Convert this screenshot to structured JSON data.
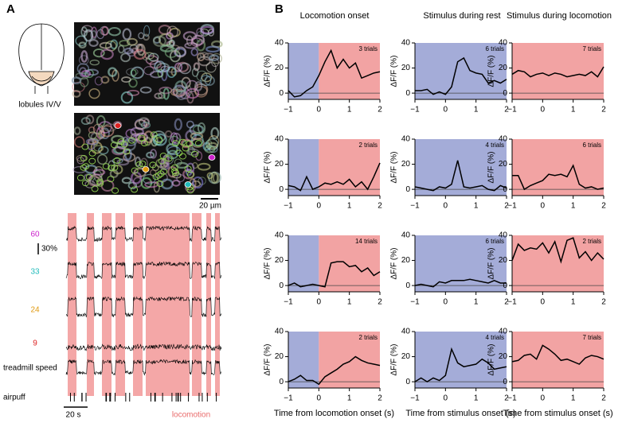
{
  "panel_labels": [
    "A",
    "B"
  ],
  "panel_a": {
    "region_label": "lobules IV/V",
    "scale_bar_image": "20 µm",
    "scale_bar_trace": "30%",
    "scale_bar_time": "20 s",
    "locomotion_label": "locomotion",
    "traces": [
      {
        "label": "60",
        "color": "#cc22cc"
      },
      {
        "label": "33",
        "color": "#22bbbb"
      },
      {
        "label": "24",
        "color": "#e09a10"
      },
      {
        "label": "9",
        "color": "#dd2222"
      },
      {
        "label": "treadmill speed",
        "color": "#000000"
      },
      {
        "label": "airpuff",
        "color": "#000000"
      }
    ]
  },
  "column_titles": [
    "Locomotion onset",
    "Stimulus during rest",
    "Stimulus during locomotion"
  ],
  "chart_data": [
    {
      "type": "line",
      "ylabel": "ΔF/F (%)",
      "annotation": "3 trials",
      "color": "#000000",
      "x": [
        -1,
        -0.8,
        -0.6,
        -0.4,
        -0.2,
        0,
        0.2,
        0.4,
        0.6,
        0.8,
        1,
        1.2,
        1.4,
        1.6,
        1.8,
        2
      ],
      "values": [
        2,
        -3,
        -2,
        2,
        5,
        14,
        25,
        34,
        20,
        27,
        20,
        24,
        12,
        14,
        16,
        17
      ],
      "xlim": [
        -1,
        2
      ],
      "xticks": [
        {
          "value": -1,
          "label": "−1"
        },
        0,
        1,
        2
      ],
      "ylim": [
        -5,
        40
      ],
      "yticks": [
        0,
        20,
        40
      ],
      "shading": [
        {
          "from": -1,
          "to": 0,
          "color": "#a4acd8"
        },
        {
          "from": 0,
          "to": 2,
          "color": "#f2a3a3"
        }
      ]
    },
    {
      "type": "line",
      "ylabel": "ΔF/F (%)",
      "annotation": "6 trials",
      "color": "#000000",
      "x": [
        -1,
        -0.8,
        -0.6,
        -0.4,
        -0.2,
        0,
        0.2,
        0.4,
        0.6,
        0.8,
        1,
        1.2,
        1.4,
        1.6,
        1.8,
        2
      ],
      "values": [
        2,
        2,
        3,
        -1,
        1,
        -1,
        5,
        25,
        28,
        18,
        16,
        15,
        8,
        10,
        8,
        11
      ],
      "xlim": [
        -1,
        2
      ],
      "xticks": [
        {
          "value": -1,
          "label": "−1"
        },
        0,
        1,
        2
      ],
      "ylim": [
        -5,
        40
      ],
      "yticks": [
        0,
        20,
        40
      ],
      "shading": [
        {
          "from": -1,
          "to": 2,
          "color": "#a4acd8"
        }
      ]
    },
    {
      "type": "line",
      "ylabel": "ΔF/F (%)",
      "annotation": "7 trials",
      "color": "#000000",
      "x": [
        -1,
        -0.8,
        -0.6,
        -0.4,
        -0.2,
        0,
        0.2,
        0.4,
        0.6,
        0.8,
        1,
        1.2,
        1.4,
        1.6,
        1.8,
        2
      ],
      "values": [
        15,
        18,
        17,
        13,
        15,
        16,
        14,
        16,
        15,
        13,
        14,
        15,
        14,
        17,
        13,
        21
      ],
      "xlim": [
        -1,
        2
      ],
      "xticks": [
        {
          "value": -1,
          "label": "−1"
        },
        0,
        1,
        2
      ],
      "ylim": [
        -5,
        40
      ],
      "yticks": [
        0,
        20,
        40
      ],
      "shading": [
        {
          "from": -1,
          "to": 2,
          "color": "#f2a3a3"
        }
      ]
    },
    {
      "type": "line",
      "ylabel": "ΔF/F (%)",
      "annotation": "2 trials",
      "color": "#000000",
      "x": [
        -1,
        -0.8,
        -0.6,
        -0.4,
        -0.2,
        0,
        0.2,
        0.4,
        0.6,
        0.8,
        1,
        1.2,
        1.4,
        1.6,
        1.8,
        2
      ],
      "values": [
        3,
        2,
        -1,
        10,
        0,
        2,
        5,
        4,
        6,
        4,
        8,
        2,
        6,
        0,
        10,
        21
      ],
      "xlim": [
        -1,
        2
      ],
      "xticks": [
        {
          "value": -1,
          "label": "−1"
        },
        0,
        1,
        2
      ],
      "ylim": [
        -5,
        40
      ],
      "yticks": [
        0,
        20,
        40
      ],
      "shading": [
        {
          "from": -1,
          "to": 0,
          "color": "#a4acd8"
        },
        {
          "from": 0,
          "to": 2,
          "color": "#f2a3a3"
        }
      ]
    },
    {
      "type": "line",
      "ylabel": "ΔF/F (%)",
      "annotation": "4 trials",
      "color": "#000000",
      "x": [
        -1,
        -0.8,
        -0.6,
        -0.4,
        -0.2,
        0,
        0.2,
        0.4,
        0.6,
        0.8,
        1,
        1.2,
        1.4,
        1.6,
        1.8,
        2
      ],
      "values": [
        2,
        1,
        0,
        -1,
        2,
        1,
        4,
        23,
        2,
        1,
        2,
        3,
        0,
        -1,
        3,
        1
      ],
      "xlim": [
        -1,
        2
      ],
      "xticks": [
        {
          "value": -1,
          "label": "−1"
        },
        0,
        1,
        2
      ],
      "ylim": [
        -5,
        40
      ],
      "yticks": [
        0,
        20,
        40
      ],
      "shading": [
        {
          "from": -1,
          "to": 2,
          "color": "#a4acd8"
        }
      ]
    },
    {
      "type": "line",
      "ylabel": "ΔF/F (%)",
      "annotation": "6 trials",
      "color": "#000000",
      "x": [
        -1,
        -0.8,
        -0.6,
        -0.4,
        -0.2,
        0,
        0.2,
        0.4,
        0.6,
        0.8,
        1,
        1.2,
        1.4,
        1.6,
        1.8,
        2
      ],
      "values": [
        11,
        11,
        0,
        3,
        5,
        7,
        12,
        11,
        12,
        10,
        19,
        4,
        1,
        2,
        0,
        1
      ],
      "xlim": [
        -1,
        2
      ],
      "xticks": [
        {
          "value": -1,
          "label": "−1"
        },
        0,
        1,
        2
      ],
      "ylim": [
        -5,
        40
      ],
      "yticks": [
        0,
        20,
        40
      ],
      "shading": [
        {
          "from": -1,
          "to": 2,
          "color": "#f2a3a3"
        }
      ]
    },
    {
      "type": "line",
      "ylabel": "ΔF/F (%)",
      "annotation": "14 trials",
      "color": "#000000",
      "x": [
        -1,
        -0.8,
        -0.6,
        -0.4,
        -0.2,
        0,
        0.2,
        0.4,
        0.6,
        0.8,
        1,
        1.2,
        1.4,
        1.6,
        1.8,
        2
      ],
      "values": [
        0,
        2,
        -1,
        0,
        1,
        0,
        -1,
        18,
        19,
        19,
        15,
        16,
        11,
        14,
        8,
        11
      ],
      "xlim": [
        -1,
        2
      ],
      "xticks": [
        {
          "value": -1,
          "label": "−1"
        },
        0,
        1,
        2
      ],
      "ylim": [
        -5,
        40
      ],
      "yticks": [
        0,
        20,
        40
      ],
      "shading": [
        {
          "from": -1,
          "to": 0,
          "color": "#a4acd8"
        },
        {
          "from": 0,
          "to": 2,
          "color": "#f2a3a3"
        }
      ]
    },
    {
      "type": "line",
      "ylabel": "ΔF/F (%)",
      "annotation": "6 trials",
      "color": "#000000",
      "x": [
        -1,
        -0.8,
        -0.6,
        -0.4,
        -0.2,
        0,
        0.2,
        0.4,
        0.6,
        0.8,
        1,
        1.2,
        1.4,
        1.6,
        1.8,
        2
      ],
      "values": [
        0,
        1,
        0,
        -1,
        3,
        2,
        4,
        4,
        4,
        5,
        4,
        3,
        2,
        4,
        2,
        2
      ],
      "xlim": [
        -1,
        2
      ],
      "xticks": [
        {
          "value": -1,
          "label": "−1"
        },
        0,
        1,
        2
      ],
      "ylim": [
        -5,
        40
      ],
      "yticks": [
        0,
        20,
        40
      ],
      "shading": [
        {
          "from": -1,
          "to": 2,
          "color": "#a4acd8"
        }
      ]
    },
    {
      "type": "line",
      "ylabel": "ΔF/F (%)",
      "annotation": "2 trials",
      "color": "#000000",
      "x": [
        -1,
        -0.8,
        -0.6,
        -0.4,
        -0.2,
        0,
        0.2,
        0.4,
        0.6,
        0.8,
        1,
        1.2,
        1.4,
        1.6,
        1.8,
        2
      ],
      "values": [
        20,
        33,
        28,
        30,
        29,
        34,
        26,
        35,
        19,
        36,
        38,
        22,
        27,
        20,
        26,
        21
      ],
      "xlim": [
        -1,
        2
      ],
      "xticks": [
        {
          "value": -1,
          "label": "−1"
        },
        0,
        1,
        2
      ],
      "ylim": [
        -5,
        40
      ],
      "yticks": [
        0,
        20,
        40
      ],
      "shading": [
        {
          "from": -1,
          "to": 2,
          "color": "#f2a3a3"
        }
      ]
    },
    {
      "type": "line",
      "ylabel": "ΔF/F (%)",
      "annotation": "2 trials",
      "xlabel": "Time from locomotion onset (s)",
      "color": "#000000",
      "x": [
        -1,
        -0.8,
        -0.6,
        -0.4,
        -0.2,
        0,
        0.2,
        0.4,
        0.6,
        0.8,
        1,
        1.2,
        1.4,
        1.6,
        1.8,
        2
      ],
      "values": [
        0,
        2,
        5,
        1,
        1,
        -2,
        4,
        7,
        10,
        14,
        16,
        20,
        17,
        15,
        14,
        13
      ],
      "xlim": [
        -1,
        2
      ],
      "xticks": [
        {
          "value": -1,
          "label": "−1"
        },
        0,
        1,
        2
      ],
      "ylim": [
        -5,
        40
      ],
      "yticks": [
        0,
        20,
        40
      ],
      "shading": [
        {
          "from": -1,
          "to": 0,
          "color": "#a4acd8"
        },
        {
          "from": 0,
          "to": 2,
          "color": "#f2a3a3"
        }
      ]
    },
    {
      "type": "line",
      "ylabel": "ΔF/F (%)",
      "annotation": "4 trials",
      "xlabel": "Time from stimulus onset (s)",
      "color": "#000000",
      "x": [
        -1,
        -0.8,
        -0.6,
        -0.4,
        -0.2,
        0,
        0.2,
        0.4,
        0.6,
        0.8,
        1,
        1.2,
        1.4,
        1.6,
        1.8,
        2
      ],
      "values": [
        0,
        3,
        0,
        3,
        1,
        5,
        26,
        15,
        12,
        13,
        14,
        18,
        15,
        10,
        11,
        12
      ],
      "xlim": [
        -1,
        2
      ],
      "xticks": [
        {
          "value": -1,
          "label": "−1"
        },
        0,
        1,
        2
      ],
      "ylim": [
        -5,
        40
      ],
      "yticks": [
        0,
        20,
        40
      ],
      "shading": [
        {
          "from": -1,
          "to": 2,
          "color": "#a4acd8"
        }
      ]
    },
    {
      "type": "line",
      "ylabel": "ΔF/F (%)",
      "annotation": "7 trials",
      "xlabel": "Time from stimulus onset (s)",
      "color": "#000000",
      "x": [
        -1,
        -0.8,
        -0.6,
        -0.4,
        -0.2,
        0,
        0.2,
        0.4,
        0.6,
        0.8,
        1,
        1.2,
        1.4,
        1.6,
        1.8,
        2
      ],
      "values": [
        16,
        17,
        21,
        22,
        18,
        29,
        26,
        22,
        17,
        18,
        16,
        14,
        19,
        21,
        20,
        18
      ],
      "xlim": [
        -1,
        2
      ],
      "xticks": [
        {
          "value": -1,
          "label": "−1"
        },
        0,
        1,
        2
      ],
      "ylim": [
        -5,
        40
      ],
      "yticks": [
        0,
        20,
        40
      ],
      "shading": [
        {
          "from": -1,
          "to": 2,
          "color": "#f2a3a3"
        }
      ]
    }
  ]
}
